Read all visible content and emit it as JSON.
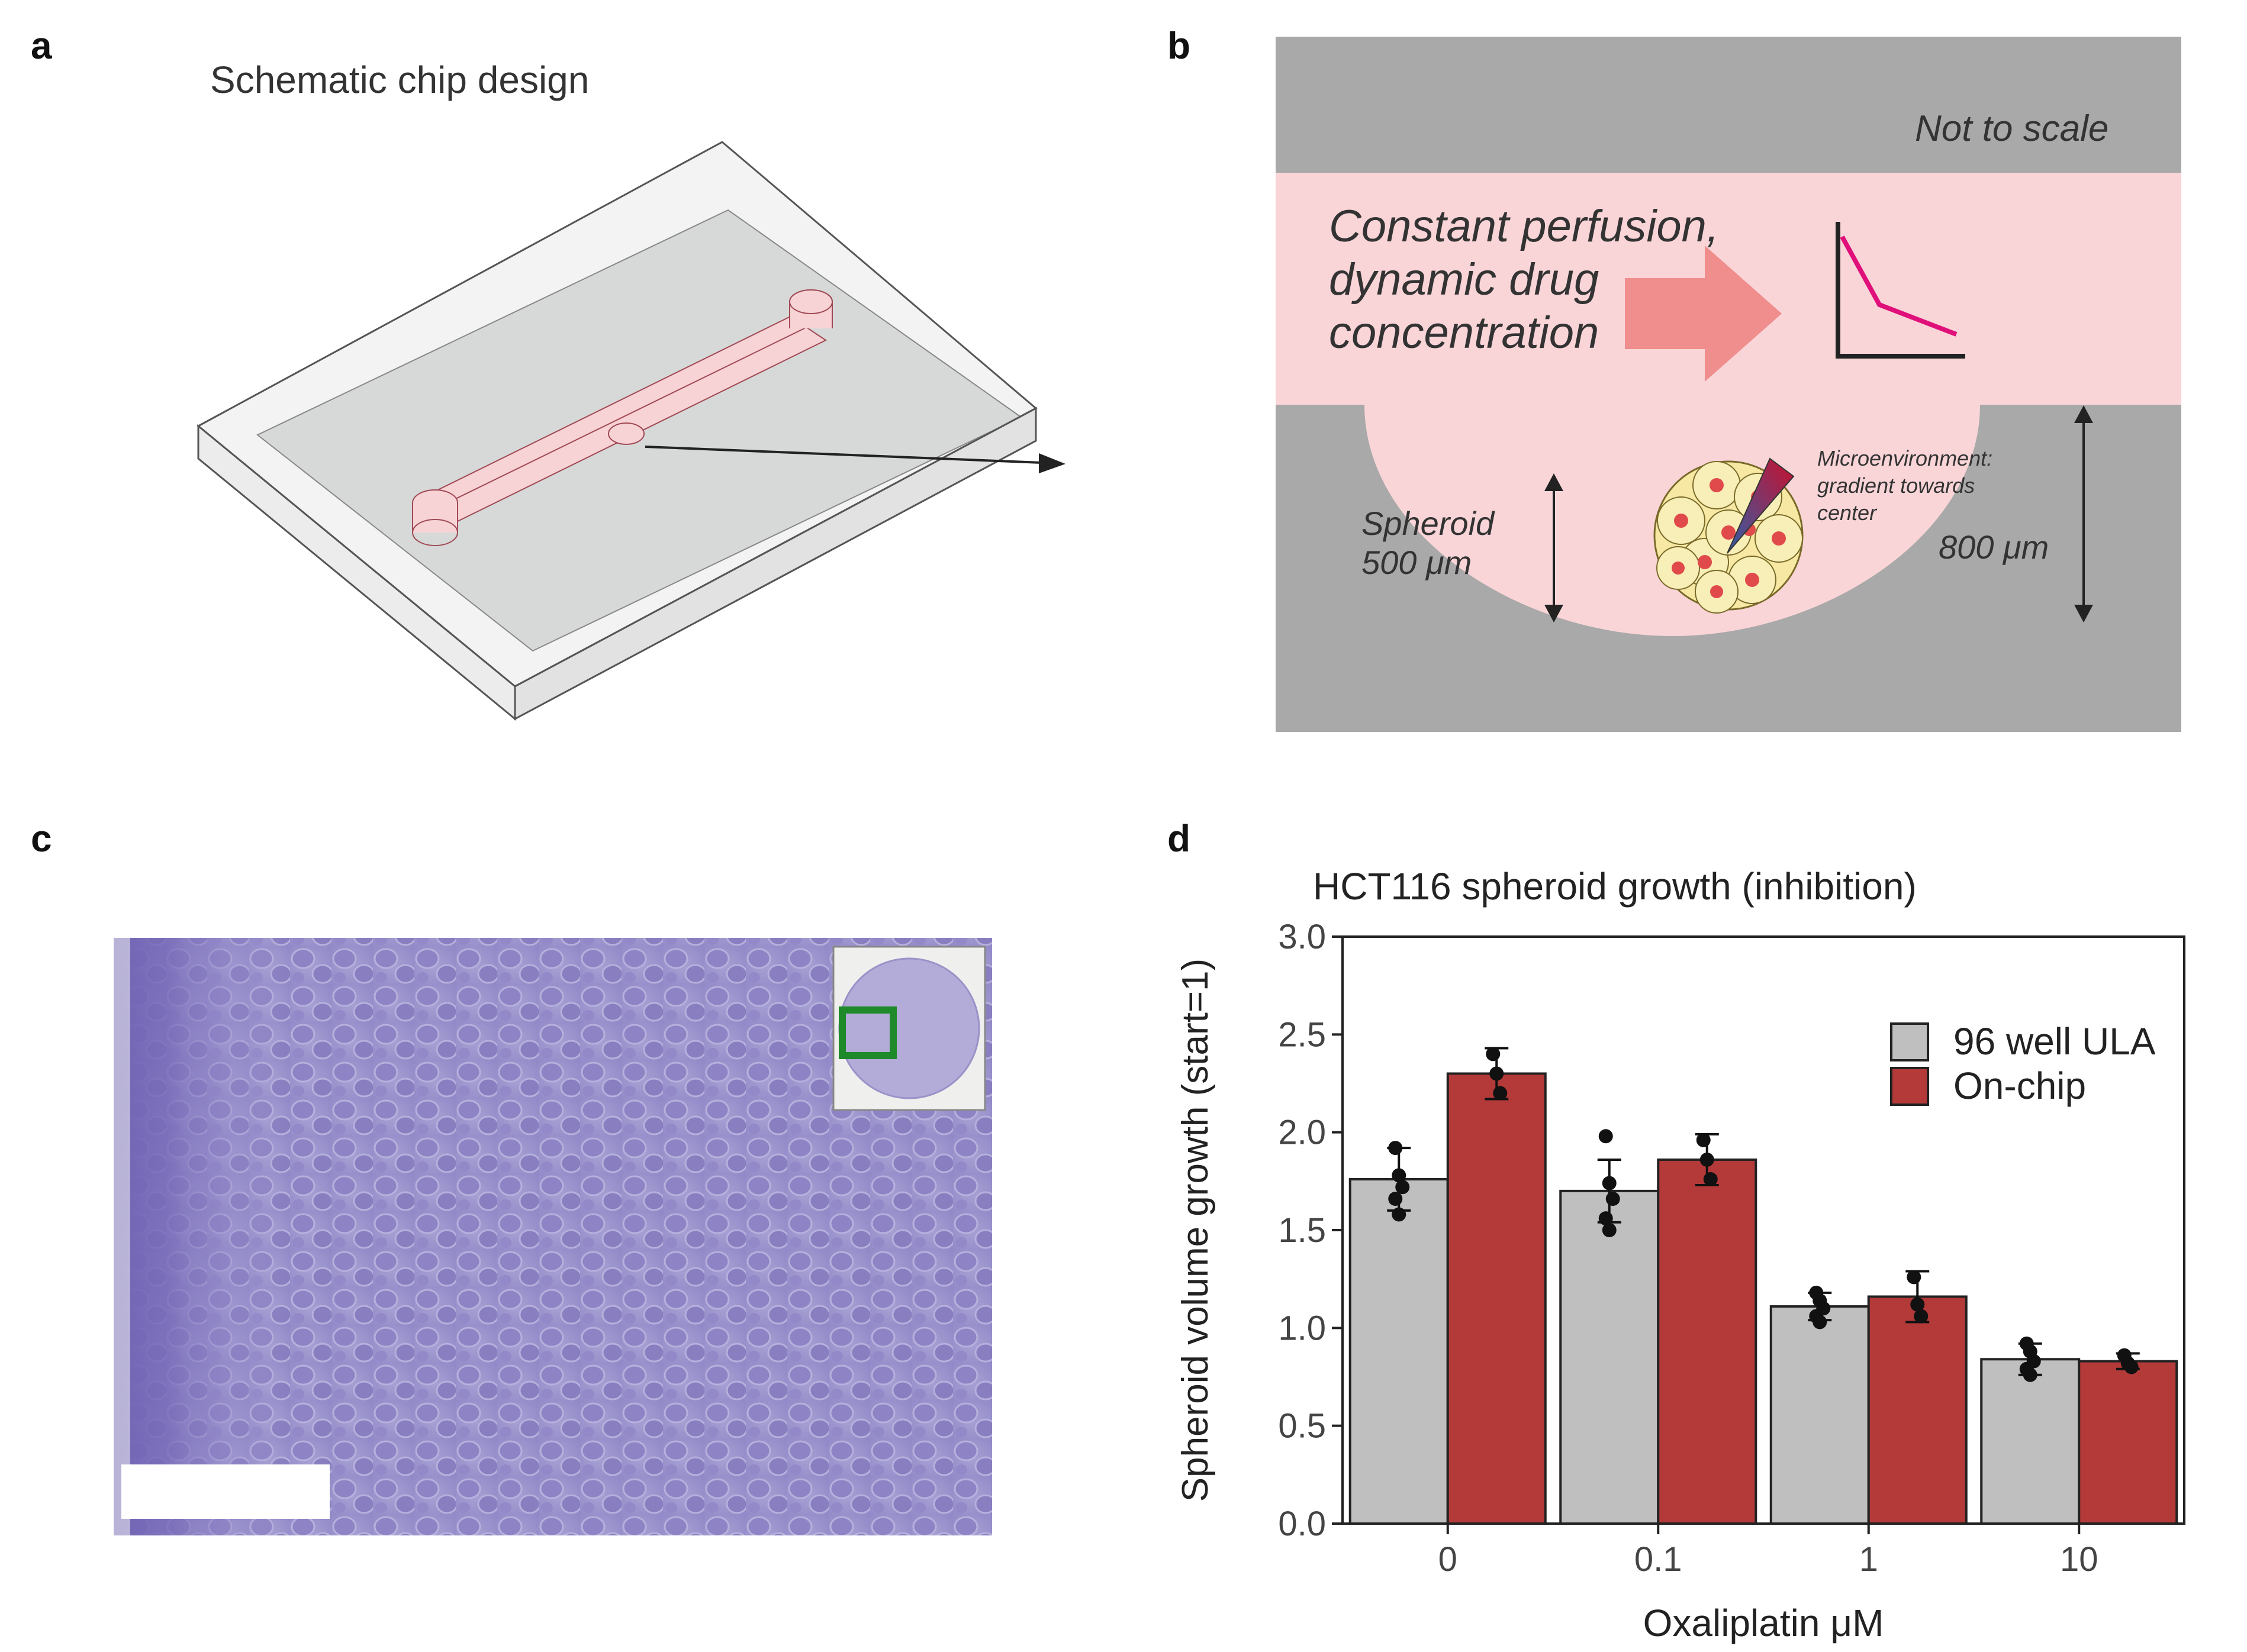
{
  "panels": {
    "a": {
      "letter": "a",
      "title": "Schematic chip design"
    },
    "b": {
      "letter": "b",
      "not_to_scale": "Not to scale",
      "perfusion_lines": [
        "Constant perfusion,",
        "dynamic drug",
        "concentration"
      ],
      "micro_lines": [
        "Microenvironment:",
        "gradient towards",
        "center"
      ],
      "spheroid_lines": [
        "Spheroid",
        "500 μm"
      ],
      "well_depth": "800 μm",
      "colors": {
        "wall": "#a9a9a9",
        "medium": "#f9d5d8",
        "arrow": "#f08d8d",
        "curve": "#e0107a"
      }
    },
    "c": {
      "letter": "c"
    },
    "d": {
      "letter": "d"
    }
  },
  "chart_data": {
    "type": "bar",
    "title": "HCT116 spheroid growth (inhibition)",
    "xlabel": "Oxaliplatin μM",
    "ylabel": "Spheroid volume growth (start=1)",
    "categories": [
      "0",
      "0.1",
      "1",
      "10"
    ],
    "ylim": [
      0,
      3.0
    ],
    "yticks": [
      "0.0",
      "0.5",
      "1.0",
      "1.5",
      "2.0",
      "2.5",
      "3.0"
    ],
    "legend_position": "top-right",
    "series": [
      {
        "name": "96 well ULA",
        "color": "#bfbfbf",
        "values": [
          1.76,
          1.7,
          1.11,
          0.84
        ],
        "err": [
          0.16,
          0.16,
          0.07,
          0.08
        ],
        "points": [
          [
            1.92,
            1.78,
            1.72,
            1.66,
            1.58
          ],
          [
            1.98,
            1.74,
            1.66,
            1.56,
            1.5
          ],
          [
            1.18,
            1.14,
            1.1,
            1.06,
            1.03
          ],
          [
            0.92,
            0.88,
            0.83,
            0.79,
            0.76
          ]
        ]
      },
      {
        "name": "On-chip",
        "color": "#b43a3a",
        "values": [
          2.3,
          1.86,
          1.16,
          0.83
        ],
        "err": [
          0.13,
          0.13,
          0.13,
          0.04
        ],
        "points": [
          [
            2.4,
            2.3,
            2.2
          ],
          [
            1.96,
            1.86,
            1.76
          ],
          [
            1.26,
            1.12,
            1.06
          ],
          [
            0.86,
            0.82,
            0.8
          ]
        ]
      }
    ]
  }
}
